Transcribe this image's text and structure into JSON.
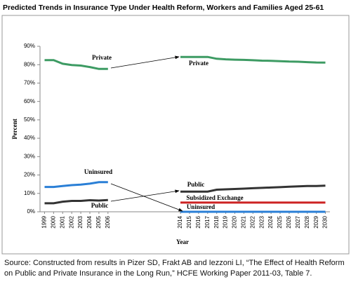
{
  "chart_data": {
    "type": "line",
    "title": "Predicted Trends in Insurance Type Under Health Reform, Workers and Families Aged 25-61",
    "x_label": "Year",
    "y_label": "Percent",
    "categories": [
      "1999",
      "2000",
      "2001",
      "2002",
      "2003",
      "2004",
      "2005",
      "2006",
      null,
      null,
      null,
      null,
      null,
      null,
      null,
      "2014",
      "2015",
      "2016",
      "2017",
      "2018",
      "2019",
      "2020",
      "2021",
      "2022",
      "2023",
      "2024",
      "2025",
      "2026",
      "2027",
      "2028",
      "2029",
      "2030"
    ],
    "series": [
      {
        "name": "Private",
        "color": "#3d9b63",
        "values": [
          82.5,
          82.5,
          80.5,
          79.8,
          79.5,
          78.7,
          77.7,
          77.7,
          null,
          null,
          null,
          null,
          null,
          null,
          null,
          84.2,
          84.2,
          84.2,
          84.2,
          83.2,
          82.9,
          82.7,
          82.6,
          82.4,
          82.2,
          82.1,
          81.9,
          81.7,
          81.6,
          81.4,
          81.2,
          81.1
        ]
      },
      {
        "name": "Uninsured",
        "color": "#2a7fd6",
        "values": [
          13.5,
          13.5,
          14,
          14.5,
          14.8,
          15.3,
          16.1,
          16.1,
          null,
          null,
          null,
          null,
          null,
          null,
          null,
          0,
          0,
          0,
          0,
          0,
          0,
          0,
          0,
          0,
          0,
          0,
          0,
          0,
          0,
          0,
          0,
          0
        ]
      },
      {
        "name": "Public",
        "color": "#333333",
        "values": [
          4.6,
          4.6,
          5.5,
          5.9,
          5.9,
          6.3,
          6.1,
          6.4,
          null,
          null,
          null,
          null,
          null,
          null,
          null,
          11,
          11,
          11,
          11,
          12,
          12.2,
          12.4,
          12.6,
          12.8,
          13,
          13.2,
          13.4,
          13.6,
          13.8,
          14,
          14,
          14.2
        ]
      },
      {
        "name": "Subsidized Exchange",
        "color": "#cc2222",
        "values": [
          null,
          null,
          null,
          null,
          null,
          null,
          null,
          null,
          null,
          null,
          null,
          null,
          null,
          null,
          null,
          5,
          5,
          5,
          5,
          5,
          5,
          5,
          5,
          5,
          5,
          5,
          5,
          5,
          5,
          5,
          5,
          5
        ]
      }
    ],
    "ylim": [
      0,
      90
    ],
    "yticks": [
      {
        "value": 0,
        "label": "0%"
      },
      {
        "value": 10,
        "label": "10%"
      },
      {
        "value": 20,
        "label": "20%"
      },
      {
        "value": 30,
        "label": "30%"
      },
      {
        "value": 40,
        "label": "40%"
      },
      {
        "value": 50,
        "label": "50%"
      },
      {
        "value": 60,
        "label": "60%"
      },
      {
        "value": 70,
        "label": "70%"
      },
      {
        "value": 80,
        "label": "80%"
      },
      {
        "value": 90,
        "label": "90%"
      }
    ],
    "grid": false,
    "annotations": [
      "Private",
      "Private",
      "Uninsured",
      "Uninsured",
      "Public",
      "Public",
      "Subsidized Exchange"
    ]
  },
  "source": "Source: Constructed from results in Pizer SD, Frakt AB and Iezzoni LI, “The Effect of Health Reform on Public and Private Insurance in the Long Run,” HCFE Working Paper 2011-03,  Table 7."
}
